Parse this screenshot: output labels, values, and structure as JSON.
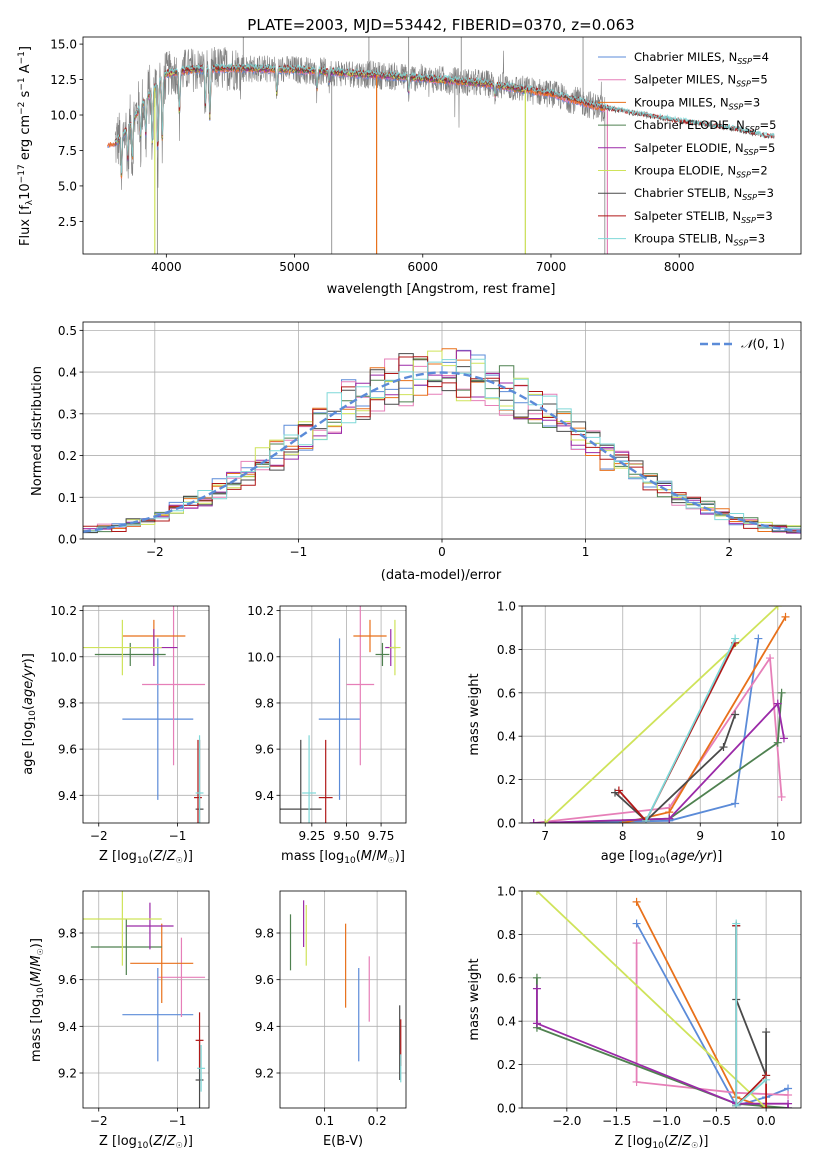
{
  "figure_title": "PLATE=2003, MJD=53442, FIBERID=0370, z=0.063",
  "colors": {
    "Chabrier MILES": "#5b8bd8",
    "Salpeter MILES": "#e67fb8",
    "Kroupa MILES": "#e8711b",
    "Chabrier ELODIE": "#4f8150",
    "Salpeter ELODIE": "#9b2aa8",
    "Kroupa ELODIE": "#cfe35a",
    "Chabrier STELIB": "#4a4a4a",
    "Salpeter STELIB": "#b01818",
    "Kroupa STELIB": "#7fd8d8",
    "observed": "#808080",
    "normal_curve": "#5b8bd8"
  },
  "chart_data": [
    {
      "id": "spectrum",
      "type": "line",
      "xlabel": "wavelength [Angstrom, rest frame]",
      "ylabel": "Flux [f_λ 10^-17 erg cm^-2 s^-1 A^-1]",
      "xlim": [
        3350,
        8950
      ],
      "ylim": [
        0.2,
        15.5
      ],
      "xticks": [
        "4000",
        "5000",
        "6000",
        "7000",
        "8000"
      ],
      "yticks": [
        "2.5",
        "5.0",
        "7.5",
        "10.0",
        "12.5",
        "15.0"
      ],
      "grid": false,
      "legend": "top-right",
      "legend_entries": [
        {
          "model": "Chabrier MILES",
          "nssp": "4"
        },
        {
          "model": "Salpeter MILES",
          "nssp": "5"
        },
        {
          "model": "Kroupa MILES",
          "nssp": "3"
        },
        {
          "model": "Chabrier ELODIE",
          "nssp": "5"
        },
        {
          "model": "Salpeter ELODIE",
          "nssp": "5"
        },
        {
          "model": "Kroupa ELODIE",
          "nssp": "2"
        },
        {
          "model": "Chabrier STELIB",
          "nssp": "3"
        },
        {
          "model": "Salpeter STELIB",
          "nssp": "3"
        },
        {
          "model": "Kroupa STELIB",
          "nssp": "3"
        }
      ],
      "continuum": {
        "x": [
          3600,
          3700,
          3800,
          3900,
          4000,
          4200,
          4500,
          5000,
          5500,
          6000,
          6500,
          7000,
          7200,
          7400,
          7600,
          8000,
          8400,
          8700
        ],
        "y": [
          8.0,
          9.0,
          10.6,
          11.8,
          12.9,
          13.2,
          13.3,
          13.2,
          12.9,
          12.6,
          12.2,
          11.5,
          11.0,
          10.5,
          10.1,
          9.5,
          9.0,
          8.4
        ]
      },
      "features": [
        {
          "x": 3650,
          "depth": 3.5
        },
        {
          "x": 3700,
          "depth": 2.5
        },
        {
          "x": 3735,
          "depth": 3.0
        },
        {
          "x": 3800,
          "depth": 2.5
        },
        {
          "x": 3840,
          "depth": 2.8
        },
        {
          "x": 3890,
          "depth": 4.5
        },
        {
          "x": 3934,
          "depth": 5.5
        },
        {
          "x": 3969,
          "depth": 5.0
        },
        {
          "x": 4102,
          "depth": 3.5
        },
        {
          "x": 4304,
          "depth": 3.0
        },
        {
          "x": 4340,
          "depth": 4.0
        },
        {
          "x": 4861,
          "depth": 2.0
        },
        {
          "x": 5175,
          "depth": 1.5
        },
        {
          "x": 5270,
          "depth": 0.8
        },
        {
          "x": 5890,
          "depth": 1.2
        },
        {
          "x": 6563,
          "depth": 0.8
        }
      ],
      "observed_spikes": [
        {
          "x": 3930,
          "y": 0.2
        },
        {
          "x": 4600,
          "y": 15.5
        },
        {
          "x": 5290,
          "y": 0.2
        },
        {
          "x": 5580,
          "y": 15.5
        },
        {
          "x": 5890,
          "y": 15.5
        },
        {
          "x": 6300,
          "y": 15.5
        },
        {
          "x": 6800,
          "y": 0.2
        },
        {
          "x": 7250,
          "y": 15.5
        },
        {
          "x": 7420,
          "y": 0.2
        }
      ],
      "model_spikes": [
        {
          "model": "Kroupa MILES",
          "x": 5640,
          "y": 0.2
        },
        {
          "model": "Kroupa ELODIE",
          "x": 3910,
          "y": 0.2
        },
        {
          "model": "Kroupa ELODIE",
          "x": 6800,
          "y": 0.2
        },
        {
          "model": "Salpeter MILES",
          "x": 7440,
          "y": 0.2
        }
      ],
      "model_ranges": {
        "MILES": [
          3540,
          7420
        ],
        "ELODIE": [
          3600,
          6800
        ],
        "STELIB": [
          3600,
          8740
        ]
      }
    },
    {
      "id": "residuals",
      "type": "histogram",
      "xlabel": "(data-model)/error",
      "ylabel": "Normed distribution",
      "xlim": [
        -2.5,
        2.5
      ],
      "ylim": [
        0,
        0.52
      ],
      "xticks": [
        "−2",
        "−1",
        "0",
        "1",
        "2"
      ],
      "yticks": [
        "0.0",
        "0.1",
        "0.2",
        "0.3",
        "0.4",
        "0.5"
      ],
      "grid": true,
      "legend": "top-right",
      "legend_label": "N(0,1)",
      "bin_width": 0.1,
      "normal_mean": 0,
      "normal_sigma": 1
    },
    {
      "id": "age_vs_Z",
      "type": "scatter",
      "xlabel": "Z [log10(Z/Z☉)]",
      "ylabel": "age [log10(age/yr)]",
      "xlim": [
        -2.2,
        -0.6
      ],
      "ylim": [
        9.28,
        10.22
      ],
      "xticks": [
        "−2",
        "−1"
      ],
      "yticks": [
        "9.4",
        "9.6",
        "9.8",
        "10.0",
        "10.2"
      ],
      "grid": true,
      "points": [
        {
          "model": "Chabrier MILES",
          "x": -1.25,
          "y": 9.73,
          "xerr": 0.45,
          "yerr": 0.35
        },
        {
          "model": "Salpeter MILES",
          "x": -1.05,
          "y": 9.88,
          "xerr": 0.4,
          "yerr": 0.35
        },
        {
          "model": "Kroupa MILES",
          "x": -1.3,
          "y": 10.09,
          "xerr": 0.4,
          "yerr": 0.07
        },
        {
          "model": "Chabrier ELODIE",
          "x": -1.6,
          "y": 10.01,
          "xerr": 0.45,
          "yerr": 0.05
        },
        {
          "model": "Salpeter ELODIE",
          "x": -1.3,
          "y": 10.04,
          "xerr": 0.3,
          "yerr": 0.08
        },
        {
          "model": "Kroupa ELODIE",
          "x": -1.7,
          "y": 10.04,
          "xerr": 0.5,
          "yerr": 0.12
        },
        {
          "model": "Chabrier STELIB",
          "x": -0.72,
          "y": 9.34,
          "xerr": 0.05,
          "yerr": 0.3
        },
        {
          "model": "Salpeter STELIB",
          "x": -0.74,
          "y": 9.39,
          "xerr": 0.05,
          "yerr": 0.25
        },
        {
          "model": "Kroupa STELIB",
          "x": -0.72,
          "y": 9.41,
          "xerr": 0.05,
          "yerr": 0.25
        }
      ]
    },
    {
      "id": "age_vs_mass",
      "type": "scatter",
      "xlabel": "mass [log10(M/M☉)]",
      "ylabel": "",
      "xlim": [
        9.02,
        9.93
      ],
      "ylim": [
        9.28,
        10.22
      ],
      "xticks": [
        "9.25",
        "9.50",
        "9.75"
      ],
      "yticks": [
        "9.4",
        "9.6",
        "9.8",
        "10.0",
        "10.2"
      ],
      "grid": true,
      "points": [
        {
          "model": "Chabrier MILES",
          "x": 9.45,
          "y": 9.73,
          "xerr": 0.15,
          "yerr": 0.35
        },
        {
          "model": "Salpeter MILES",
          "x": 9.6,
          "y": 9.88,
          "xerr": 0.1,
          "yerr": 0.35
        },
        {
          "model": "Kroupa MILES",
          "x": 9.67,
          "y": 10.09,
          "xerr": 0.12,
          "yerr": 0.07
        },
        {
          "model": "Chabrier ELODIE",
          "x": 9.76,
          "y": 10.01,
          "xerr": 0.05,
          "yerr": 0.05
        },
        {
          "model": "Salpeter ELODIE",
          "x": 9.82,
          "y": 10.04,
          "xerr": 0.04,
          "yerr": 0.08
        },
        {
          "model": "Kroupa ELODIE",
          "x": 9.85,
          "y": 10.04,
          "xerr": 0.04,
          "yerr": 0.12
        },
        {
          "model": "Chabrier STELIB",
          "x": 9.17,
          "y": 9.34,
          "xerr": 0.15,
          "yerr": 0.3
        },
        {
          "model": "Salpeter STELIB",
          "x": 9.35,
          "y": 9.39,
          "xerr": 0.05,
          "yerr": 0.25
        },
        {
          "model": "Kroupa STELIB",
          "x": 9.23,
          "y": 9.41,
          "xerr": 0.05,
          "yerr": 0.25
        }
      ]
    },
    {
      "id": "mass_vs_Z",
      "type": "scatter",
      "xlabel": "Z [log10(Z/Z☉)]",
      "ylabel": "mass [log10(M/M☉)]",
      "xlim": [
        -2.2,
        -0.6
      ],
      "ylim": [
        9.05,
        9.98
      ],
      "xticks": [
        "−2",
        "−1"
      ],
      "yticks": [
        "9.2",
        "9.4",
        "9.6",
        "9.8"
      ],
      "grid": true,
      "points": [
        {
          "model": "Chabrier MILES",
          "x": -1.25,
          "y": 9.45,
          "xerr": 0.45,
          "yerr": 0.2
        },
        {
          "model": "Salpeter MILES",
          "x": -0.95,
          "y": 9.61,
          "xerr": 0.3,
          "yerr": 0.17
        },
        {
          "model": "Kroupa MILES",
          "x": -1.2,
          "y": 9.67,
          "xerr": 0.4,
          "yerr": 0.17
        },
        {
          "model": "Chabrier ELODIE",
          "x": -1.65,
          "y": 9.74,
          "xerr": 0.45,
          "yerr": 0.12
        },
        {
          "model": "Salpeter ELODIE",
          "x": -1.35,
          "y": 9.83,
          "xerr": 0.3,
          "yerr": 0.1
        },
        {
          "model": "Kroupa ELODIE",
          "x": -1.7,
          "y": 9.86,
          "xerr": 0.5,
          "yerr": 0.2
        },
        {
          "model": "Chabrier STELIB",
          "x": -0.72,
          "y": 9.17,
          "xerr": 0.05,
          "yerr": 0.17
        },
        {
          "model": "Salpeter STELIB",
          "x": -0.72,
          "y": 9.34,
          "xerr": 0.05,
          "yerr": 0.12
        },
        {
          "model": "Kroupa STELIB",
          "x": -0.7,
          "y": 9.22,
          "xerr": 0.05,
          "yerr": 0.1
        }
      ]
    },
    {
      "id": "mass_vs_EBV",
      "type": "scatter",
      "xlabel": "E(B-V)",
      "ylabel": "",
      "xlim": [
        0.015,
        0.255
      ],
      "ylim": [
        9.05,
        9.98
      ],
      "xticks": [
        "0.1",
        "0.2"
      ],
      "yticks": [
        "9.2",
        "9.4",
        "9.6",
        "9.8"
      ],
      "grid": true,
      "points": [
        {
          "model": "Chabrier MILES",
          "x": 0.165,
          "y": 9.45,
          "xerr": 0,
          "yerr": 0.2
        },
        {
          "model": "Salpeter MILES",
          "x": 0.185,
          "y": 9.56,
          "xerr": 0,
          "yerr": 0.14
        },
        {
          "model": "Kroupa MILES",
          "x": 0.14,
          "y": 9.66,
          "xerr": 0,
          "yerr": 0.18
        },
        {
          "model": "Chabrier ELODIE",
          "x": 0.035,
          "y": 9.76,
          "xerr": 0,
          "yerr": 0.12
        },
        {
          "model": "Salpeter ELODIE",
          "x": 0.06,
          "y": 9.84,
          "xerr": 0,
          "yerr": 0.1
        },
        {
          "model": "Kroupa ELODIE",
          "x": 0.065,
          "y": 9.79,
          "xerr": 0,
          "yerr": 0.13
        },
        {
          "model": "Chabrier STELIB",
          "x": 0.243,
          "y": 9.33,
          "xerr": 0,
          "yerr": 0.16
        },
        {
          "model": "Salpeter STELIB",
          "x": 0.245,
          "y": 9.33,
          "xerr": 0,
          "yerr": 0.1
        },
        {
          "model": "Kroupa STELIB",
          "x": 0.245,
          "y": 9.22,
          "xerr": 0,
          "yerr": 0.06
        }
      ]
    },
    {
      "id": "weight_vs_age",
      "type": "line",
      "xlabel": "age [log10(age/yr)]",
      "ylabel": "mass weight",
      "xlim": [
        6.7,
        10.3
      ],
      "ylim": [
        0,
        1.0
      ],
      "xticks": [
        "7",
        "8",
        "9",
        "10"
      ],
      "yticks": [
        "0.0",
        "0.2",
        "0.4",
        "0.6",
        "0.8",
        "1.0"
      ],
      "grid": true,
      "series": [
        {
          "model": "Chabrier MILES",
          "x": [
            6.85,
            8.6,
            9.45,
            9.75
          ],
          "y": [
            0.0,
            0.01,
            0.09,
            0.85
          ]
        },
        {
          "model": "Salpeter MILES",
          "x": [
            6.85,
            8.6,
            9.9,
            10.05
          ],
          "y": [
            0.0,
            0.07,
            0.76,
            0.12
          ]
        },
        {
          "model": "Kroupa MILES",
          "x": [
            8.0,
            8.6,
            10.1
          ],
          "y": [
            0.0,
            0.05,
            0.95
          ]
        },
        {
          "model": "Chabrier ELODIE",
          "x": [
            7.0,
            8.6,
            10.0,
            10.05
          ],
          "y": [
            0.0,
            0.02,
            0.37,
            0.6
          ]
        },
        {
          "model": "Salpeter ELODIE",
          "x": [
            6.85,
            8.6,
            10.0,
            10.08
          ],
          "y": [
            0.0,
            0.02,
            0.55,
            0.39
          ]
        },
        {
          "model": "Kroupa ELODIE",
          "x": [
            7.0,
            10.0
          ],
          "y": [
            0.0,
            1.0
          ]
        },
        {
          "model": "Chabrier STELIB",
          "x": [
            7.9,
            8.3,
            9.3,
            9.45
          ],
          "y": [
            0.14,
            0.01,
            0.35,
            0.5
          ]
        },
        {
          "model": "Salpeter STELIB",
          "x": [
            7.95,
            8.3,
            9.45
          ],
          "y": [
            0.15,
            0.01,
            0.83
          ]
        },
        {
          "model": "Kroupa STELIB",
          "x": [
            8.3,
            9.45
          ],
          "y": [
            0.01,
            0.85
          ]
        }
      ]
    },
    {
      "id": "weight_vs_Z",
      "type": "line",
      "xlabel": "Z [log10(Z/Z☉)]",
      "ylabel": "mass weight",
      "xlim": [
        -2.45,
        0.35
      ],
      "ylim": [
        0,
        1.0
      ],
      "xticks": [
        "−2.0",
        "−1.5",
        "−1.0",
        "−0.5",
        "0.0"
      ],
      "yticks": [
        "0.0",
        "0.2",
        "0.4",
        "0.6",
        "0.8",
        "1.0"
      ],
      "grid": true,
      "series": [
        {
          "model": "Chabrier MILES",
          "x": [
            -1.3,
            -0.3,
            0.0,
            0.22
          ],
          "y": [
            0.85,
            0.01,
            0.05,
            0.09
          ]
        },
        {
          "model": "Salpeter MILES",
          "x": [
            -1.3,
            -1.3,
            -0.3,
            0.22
          ],
          "y": [
            0.76,
            0.12,
            0.07,
            0.06
          ]
        },
        {
          "model": "Kroupa MILES",
          "x": [
            -1.3,
            -0.3,
            0.0
          ],
          "y": [
            0.95,
            0.05,
            0.0
          ]
        },
        {
          "model": "Chabrier ELODIE",
          "x": [
            -2.3,
            -2.3,
            -0.3,
            0.22
          ],
          "y": [
            0.6,
            0.37,
            0.02,
            0.0
          ]
        },
        {
          "model": "Salpeter ELODIE",
          "x": [
            -2.3,
            -2.3,
            -0.3,
            0.22,
            0.22
          ],
          "y": [
            0.55,
            0.39,
            0.02,
            0.02,
            0.0
          ]
        },
        {
          "model": "Kroupa ELODIE",
          "x": [
            -2.3,
            0.0
          ],
          "y": [
            1.0,
            0.0
          ]
        },
        {
          "model": "Chabrier STELIB",
          "x": [
            -0.3,
            -0.3,
            0.0,
            0.0
          ],
          "y": [
            0.84,
            0.5,
            0.15,
            0.35
          ]
        },
        {
          "model": "Salpeter STELIB",
          "x": [
            -0.3,
            -0.3,
            0.0,
            0.0
          ],
          "y": [
            0.84,
            0.01,
            0.15,
            0.0
          ]
        },
        {
          "model": "Kroupa STELIB",
          "x": [
            -0.3,
            -0.3,
            0.0
          ],
          "y": [
            0.85,
            0.01,
            0.13
          ]
        }
      ]
    }
  ]
}
